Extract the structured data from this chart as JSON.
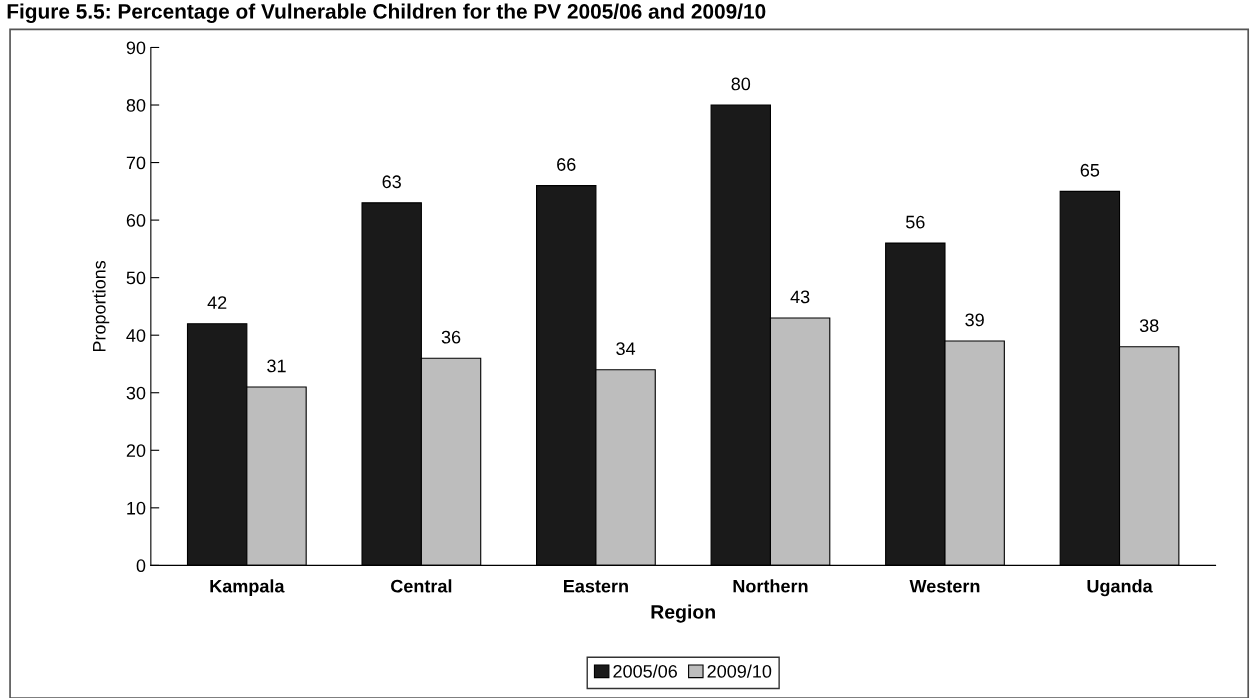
{
  "chart_data": {
    "type": "bar",
    "title": "Figure 5.5: Percentage of Vulnerable Children for the PV 2005/06 and 2009/10",
    "xlabel": "Region",
    "ylabel": "Proportions",
    "categories": [
      "Kampala",
      "Central",
      "Eastern",
      "Northern",
      "Western",
      "Uganda"
    ],
    "series": [
      {
        "name": "2005/06",
        "color": "#1a1a1a",
        "values": [
          42,
          63,
          66,
          80,
          56,
          65
        ]
      },
      {
        "name": "2009/10",
        "color": "#bdbdbd",
        "values": [
          31,
          36,
          34,
          43,
          39,
          38
        ]
      }
    ],
    "ylim": [
      0,
      90
    ],
    "yticks": [
      0,
      10,
      20,
      30,
      40,
      50,
      60,
      70,
      80,
      90
    ],
    "data_labels": true,
    "grid": false,
    "legend": "bottom"
  }
}
